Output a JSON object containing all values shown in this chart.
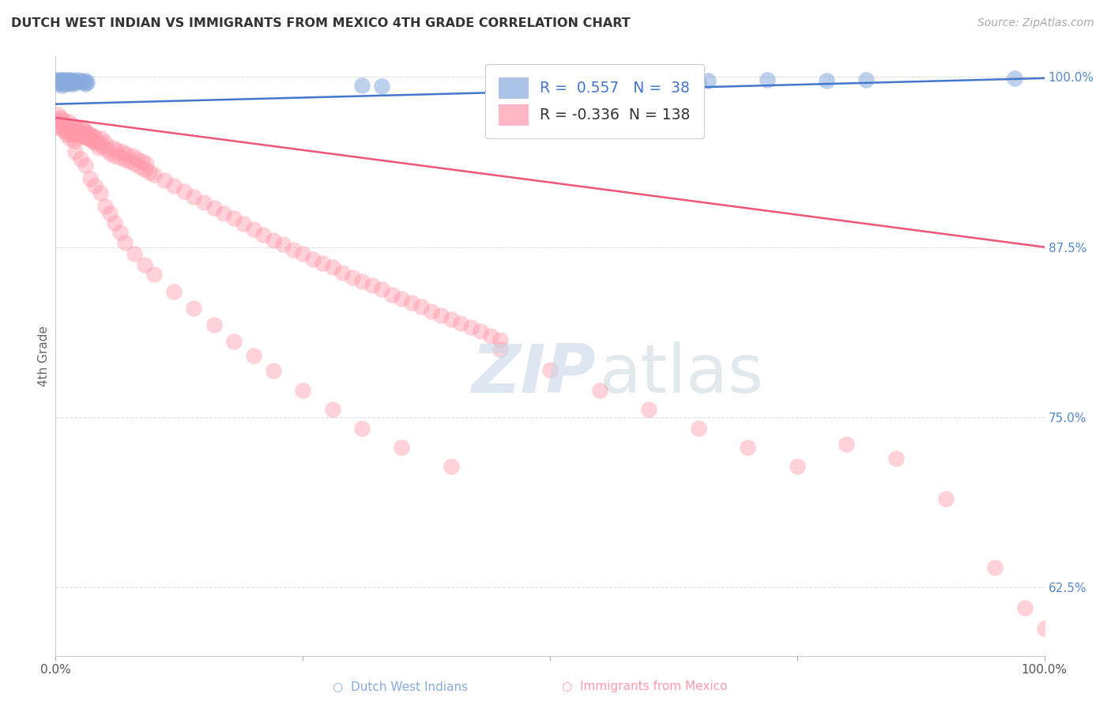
{
  "title": "DUTCH WEST INDIAN VS IMMIGRANTS FROM MEXICO 4TH GRADE CORRELATION CHART",
  "source": "Source: ZipAtlas.com",
  "ylabel": "4th Grade",
  "blue_R": 0.557,
  "blue_N": 38,
  "pink_R": -0.336,
  "pink_N": 138,
  "blue_color": "#88AADD",
  "pink_color": "#FF99AA",
  "blue_line_color": "#4477CC",
  "pink_line_color": "#EE5577",
  "right_axis_color": "#5588CC",
  "legend_label_blue": "Dutch West Indians",
  "legend_label_pink": "Immigrants from Mexico",
  "blue_scatter_x": [
    0.001,
    0.002,
    0.003,
    0.004,
    0.005,
    0.006,
    0.007,
    0.007,
    0.008,
    0.009,
    0.01,
    0.011,
    0.012,
    0.013,
    0.013,
    0.014,
    0.015,
    0.016,
    0.017,
    0.018,
    0.019,
    0.02,
    0.022,
    0.025,
    0.028,
    0.03,
    0.03,
    0.032,
    0.31,
    0.33,
    0.62,
    0.63,
    0.65,
    0.66,
    0.72,
    0.78,
    0.82,
    0.97
  ],
  "blue_scatter_y": [
    0.998,
    0.996,
    0.997,
    0.995,
    0.998,
    0.994,
    0.996,
    0.998,
    0.997,
    0.995,
    0.996,
    0.998,
    0.997,
    0.995,
    0.997,
    0.996,
    0.998,
    0.997,
    0.996,
    0.995,
    0.997,
    0.996,
    0.998,
    0.997,
    0.996,
    0.995,
    0.997,
    0.996,
    0.994,
    0.993,
    0.997,
    0.998,
    0.996,
    0.997,
    0.998,
    0.997,
    0.998,
    0.999
  ],
  "pink_scatter_x": [
    0.001,
    0.002,
    0.003,
    0.004,
    0.005,
    0.006,
    0.007,
    0.008,
    0.009,
    0.01,
    0.011,
    0.012,
    0.013,
    0.014,
    0.015,
    0.016,
    0.017,
    0.018,
    0.019,
    0.02,
    0.021,
    0.022,
    0.023,
    0.024,
    0.025,
    0.026,
    0.027,
    0.028,
    0.029,
    0.03,
    0.031,
    0.032,
    0.033,
    0.034,
    0.035,
    0.036,
    0.037,
    0.038,
    0.039,
    0.04,
    0.042,
    0.044,
    0.045,
    0.046,
    0.048,
    0.05,
    0.052,
    0.055,
    0.058,
    0.06,
    0.062,
    0.065,
    0.068,
    0.07,
    0.072,
    0.075,
    0.078,
    0.08,
    0.082,
    0.085,
    0.088,
    0.09,
    0.092,
    0.095,
    0.1,
    0.11,
    0.12,
    0.13,
    0.14,
    0.15,
    0.16,
    0.17,
    0.18,
    0.19,
    0.2,
    0.21,
    0.22,
    0.23,
    0.24,
    0.25,
    0.26,
    0.27,
    0.28,
    0.29,
    0.3,
    0.31,
    0.32,
    0.33,
    0.34,
    0.35,
    0.36,
    0.37,
    0.38,
    0.39,
    0.4,
    0.41,
    0.42,
    0.43,
    0.44,
    0.45,
    0.02,
    0.025,
    0.03,
    0.035,
    0.04,
    0.045,
    0.05,
    0.055,
    0.06,
    0.065,
    0.07,
    0.08,
    0.09,
    0.1,
    0.12,
    0.14,
    0.16,
    0.18,
    0.2,
    0.22,
    0.25,
    0.28,
    0.31,
    0.35,
    0.4,
    0.45,
    0.5,
    0.55,
    0.6,
    0.65,
    0.7,
    0.75,
    0.8,
    0.85,
    0.9,
    0.95,
    0.98,
    1.0
  ],
  "pink_scatter_y": [
    0.968,
    0.972,
    0.965,
    0.963,
    0.97,
    0.966,
    0.961,
    0.968,
    0.964,
    0.96,
    0.958,
    0.963,
    0.967,
    0.955,
    0.961,
    0.958,
    0.964,
    0.96,
    0.953,
    0.957,
    0.963,
    0.956,
    0.961,
    0.958,
    0.962,
    0.956,
    0.959,
    0.963,
    0.956,
    0.96,
    0.956,
    0.959,
    0.955,
    0.958,
    0.954,
    0.957,
    0.953,
    0.956,
    0.952,
    0.956,
    0.952,
    0.948,
    0.951,
    0.955,
    0.949,
    0.952,
    0.947,
    0.944,
    0.948,
    0.942,
    0.946,
    0.941,
    0.945,
    0.939,
    0.943,
    0.938,
    0.942,
    0.936,
    0.94,
    0.934,
    0.938,
    0.932,
    0.936,
    0.93,
    0.928,
    0.924,
    0.92,
    0.916,
    0.912,
    0.908,
    0.904,
    0.9,
    0.896,
    0.892,
    0.888,
    0.884,
    0.88,
    0.877,
    0.873,
    0.87,
    0.866,
    0.863,
    0.86,
    0.856,
    0.853,
    0.85,
    0.847,
    0.844,
    0.84,
    0.837,
    0.834,
    0.831,
    0.828,
    0.825,
    0.822,
    0.819,
    0.816,
    0.813,
    0.81,
    0.807,
    0.945,
    0.94,
    0.935,
    0.925,
    0.92,
    0.915,
    0.905,
    0.9,
    0.893,
    0.886,
    0.878,
    0.87,
    0.862,
    0.855,
    0.842,
    0.83,
    0.818,
    0.806,
    0.795,
    0.784,
    0.77,
    0.756,
    0.742,
    0.728,
    0.714,
    0.8,
    0.785,
    0.77,
    0.756,
    0.742,
    0.728,
    0.714,
    0.73,
    0.72,
    0.69,
    0.64,
    0.61,
    0.595
  ],
  "xlim": [
    0.0,
    1.0
  ],
  "ylim": [
    0.575,
    1.015
  ],
  "right_yticks": [
    1.0,
    0.875,
    0.75,
    0.625
  ],
  "right_yticklabels": [
    "100.0%",
    "87.5%",
    "75.0%",
    "62.5%"
  ],
  "blue_trendline": [
    0.98,
    0.999
  ],
  "pink_trendline_start": 0.97,
  "pink_trendline_end": 0.875,
  "background_color": "#FFFFFF",
  "grid_color": "#DDDDDD"
}
